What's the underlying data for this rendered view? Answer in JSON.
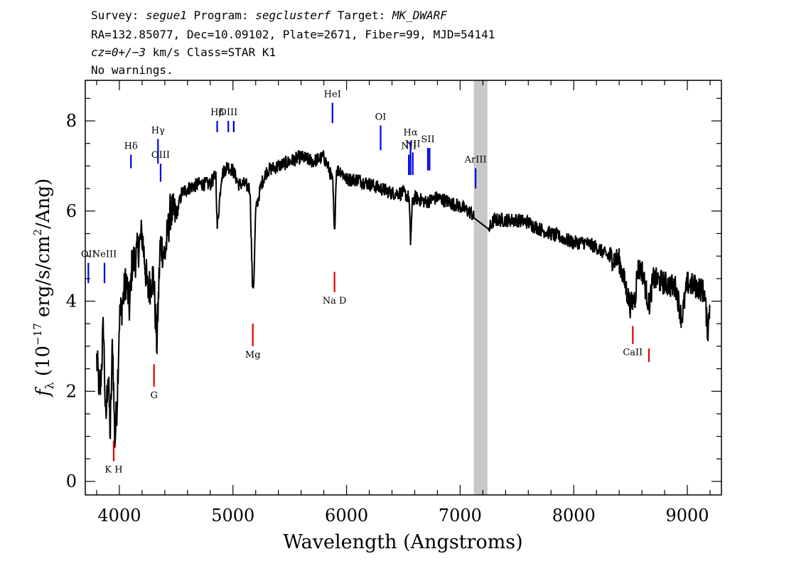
{
  "header": {
    "line1": {
      "survey_label": "Survey: ",
      "survey": "segue1",
      "program_label": " Program: ",
      "program": "segclusterf",
      "target_label": " Target: ",
      "target": "MK_DWARF"
    },
    "line2": "RA=132.85077, Dec=10.09102, Plate=2671, Fiber=99, MJD=54141",
    "line3": {
      "cz": "cz=0+/−3",
      "rest": " km/s Class=STAR K1"
    },
    "line4": "No warnings."
  },
  "colors": {
    "flux": "#000000",
    "error": "#c0c0c0",
    "emission": "#0000e6",
    "absorption": "#e00000",
    "label": "#000000",
    "masked_band": "#c8c8c8"
  },
  "chart_data": {
    "type": "line",
    "xlabel": "Wavelength (Angstroms)",
    "ylabel_parts": {
      "f": "f",
      "sub": "λ",
      "pre": " (10",
      "exp": "−17",
      "mid": " erg/s/cm",
      "exp2": "2",
      "post": "/Ang)"
    },
    "xlim": [
      3700,
      9300
    ],
    "ylim": [
      -0.3,
      8.9
    ],
    "xticks": [
      4000,
      5000,
      6000,
      7000,
      8000,
      9000
    ],
    "yticks": [
      0,
      2,
      4,
      6,
      8
    ],
    "masked_band": [
      7120,
      7240
    ],
    "series": [
      {
        "role": "smoothed flux",
        "x": [
          3800,
          3830,
          3860,
          3880,
          3900,
          3920,
          3940,
          3960,
          3980,
          4000,
          4030,
          4060,
          4090,
          4110,
          4150,
          4200,
          4250,
          4300,
          4330,
          4360,
          4400,
          4450,
          4500,
          4550,
          4600,
          4700,
          4800,
          4850,
          4861,
          4900,
          4950,
          5000,
          5050,
          5100,
          5150,
          5172,
          5183,
          5200,
          5250,
          5300,
          5400,
          5500,
          5600,
          5700,
          5800,
          5850,
          5880,
          5893,
          5910,
          5950,
          6000,
          6100,
          6200,
          6300,
          6400,
          6500,
          6550,
          6563,
          6580,
          6600,
          6700,
          6800,
          6900,
          7000,
          7100,
          7120,
          7250,
          7300,
          7400,
          7500,
          7600,
          7700,
          7800,
          7900,
          8000,
          8100,
          8200,
          8300,
          8400,
          8498,
          8542,
          8560,
          8600,
          8662,
          8700,
          8800,
          8900,
          8950,
          9000,
          9100,
          9150,
          9180,
          9200
        ],
        "y": [
          2.7,
          1.9,
          3.5,
          1.2,
          2.5,
          1.0,
          3.2,
          0.85,
          1.8,
          3.6,
          4.0,
          4.5,
          3.8,
          4.8,
          5.0,
          5.5,
          4.2,
          4.6,
          3.0,
          5.3,
          5.0,
          6.0,
          5.9,
          6.4,
          6.5,
          6.6,
          6.6,
          6.8,
          5.6,
          6.8,
          7.0,
          6.9,
          6.6,
          6.6,
          6.5,
          4.3,
          4.4,
          6.0,
          6.6,
          6.9,
          7.0,
          7.1,
          7.2,
          7.1,
          7.2,
          6.9,
          6.6,
          5.4,
          6.9,
          6.9,
          6.7,
          6.7,
          6.6,
          6.5,
          6.4,
          6.4,
          6.3,
          5.3,
          6.2,
          6.3,
          6.2,
          6.3,
          6.2,
          6.1,
          5.95,
          5.85,
          5.6,
          5.8,
          5.8,
          5.8,
          5.75,
          5.6,
          5.5,
          5.4,
          5.3,
          5.3,
          5.2,
          5.0,
          4.9,
          3.9,
          4.1,
          4.7,
          4.7,
          3.9,
          4.5,
          4.4,
          4.3,
          3.6,
          4.4,
          4.3,
          4.2,
          3.3,
          4.0
        ]
      }
    ],
    "emission_lines": [
      {
        "label": "OII",
        "x": 3727,
        "y0": 4.4,
        "y1": 4.85
      },
      {
        "label": "NeIII",
        "x": 3869,
        "y0": 4.4,
        "y1": 4.85
      },
      {
        "label": "Hδ",
        "x": 4102,
        "y0": 6.95,
        "y1": 7.25
      },
      {
        "label": "Hγ",
        "x": 4340,
        "y0": 7.05,
        "y1": 7.6
      },
      {
        "label": "OIII",
        "x": 4363,
        "y0": 6.65,
        "y1": 7.05
      },
      {
        "label": "Hβ",
        "x": 4861,
        "y0": 7.75,
        "y1": 8.0
      },
      {
        "label": "OIII",
        "x": 4959,
        "y0": 7.75,
        "y1": 8.0
      },
      {
        "label": "",
        "x": 5007,
        "y0": 7.75,
        "y1": 8.0
      },
      {
        "label": "HeI",
        "x": 5876,
        "y0": 7.95,
        "y1": 8.4
      },
      {
        "label": "OI",
        "x": 6300,
        "y0": 7.35,
        "y1": 7.9
      },
      {
        "label": "NII",
        "x": 6548,
        "y0": 6.8,
        "y1": 7.25
      },
      {
        "label": "Hα",
        "x": 6563,
        "y0": 6.8,
        "y1": 7.55
      },
      {
        "label": "NII",
        "x": 6583,
        "y0": 6.8,
        "y1": 7.3
      },
      {
        "label": "SII",
        "x": 6716,
        "y0": 6.9,
        "y1": 7.4
      },
      {
        "label": "",
        "x": 6731,
        "y0": 6.9,
        "y1": 7.4
      },
      {
        "label": "ArIII",
        "x": 7136,
        "y0": 6.5,
        "y1": 6.95
      }
    ],
    "absorption_lines": [
      {
        "label": "K H",
        "x": 3950,
        "y0": 0.45,
        "y1": 0.9
      },
      {
        "label": "G",
        "x": 4305,
        "y0": 2.1,
        "y1": 2.6
      },
      {
        "label": "Mg",
        "x": 5175,
        "y0": 3.0,
        "y1": 3.5
      },
      {
        "label": "Na  D",
        "x": 5894,
        "y0": 4.2,
        "y1": 4.65
      },
      {
        "label": "CaII",
        "x": 8520,
        "y0": 3.05,
        "y1": 3.45
      },
      {
        "label": "",
        "x": 8662,
        "y0": 2.65,
        "y1": 2.95
      }
    ]
  }
}
